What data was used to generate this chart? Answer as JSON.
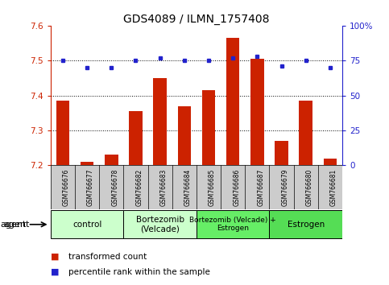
{
  "title": "GDS4089 / ILMN_1757408",
  "samples": [
    "GSM766676",
    "GSM766677",
    "GSM766678",
    "GSM766682",
    "GSM766683",
    "GSM766684",
    "GSM766685",
    "GSM766686",
    "GSM766687",
    "GSM766679",
    "GSM766680",
    "GSM766681"
  ],
  "transformed_count": [
    7.385,
    7.21,
    7.23,
    7.355,
    7.45,
    7.37,
    7.415,
    7.565,
    7.505,
    7.27,
    7.385,
    7.22
  ],
  "percentile_rank": [
    75,
    70,
    70,
    75,
    77,
    75,
    75,
    77,
    78,
    71,
    75,
    70
  ],
  "ylim_left": [
    7.2,
    7.6
  ],
  "ylim_right": [
    0,
    100
  ],
  "yticks_left": [
    7.2,
    7.3,
    7.4,
    7.5,
    7.6
  ],
  "yticks_right": [
    0,
    25,
    50,
    75,
    100
  ],
  "groups": [
    {
      "label": "control",
      "start": 0,
      "end": 3,
      "color": "#ccffcc"
    },
    {
      "label": "Bortezomib\n(Velcade)",
      "start": 3,
      "end": 6,
      "color": "#ccffcc"
    },
    {
      "label": "Bortezomib (Velcade) +\nEstrogen",
      "start": 6,
      "end": 9,
      "color": "#66ee66"
    },
    {
      "label": "Estrogen",
      "start": 9,
      "end": 12,
      "color": "#55dd55"
    }
  ],
  "bar_color": "#cc2200",
  "dot_color": "#2222cc",
  "bar_bottom": 7.2,
  "legend_items": [
    {
      "color": "#cc2200",
      "label": "transformed count"
    },
    {
      "color": "#2222cc",
      "label": "percentile rank within the sample"
    }
  ],
  "agent_label": "agent",
  "xlabel_color": "#333333",
  "label_bg_color": "#cccccc"
}
